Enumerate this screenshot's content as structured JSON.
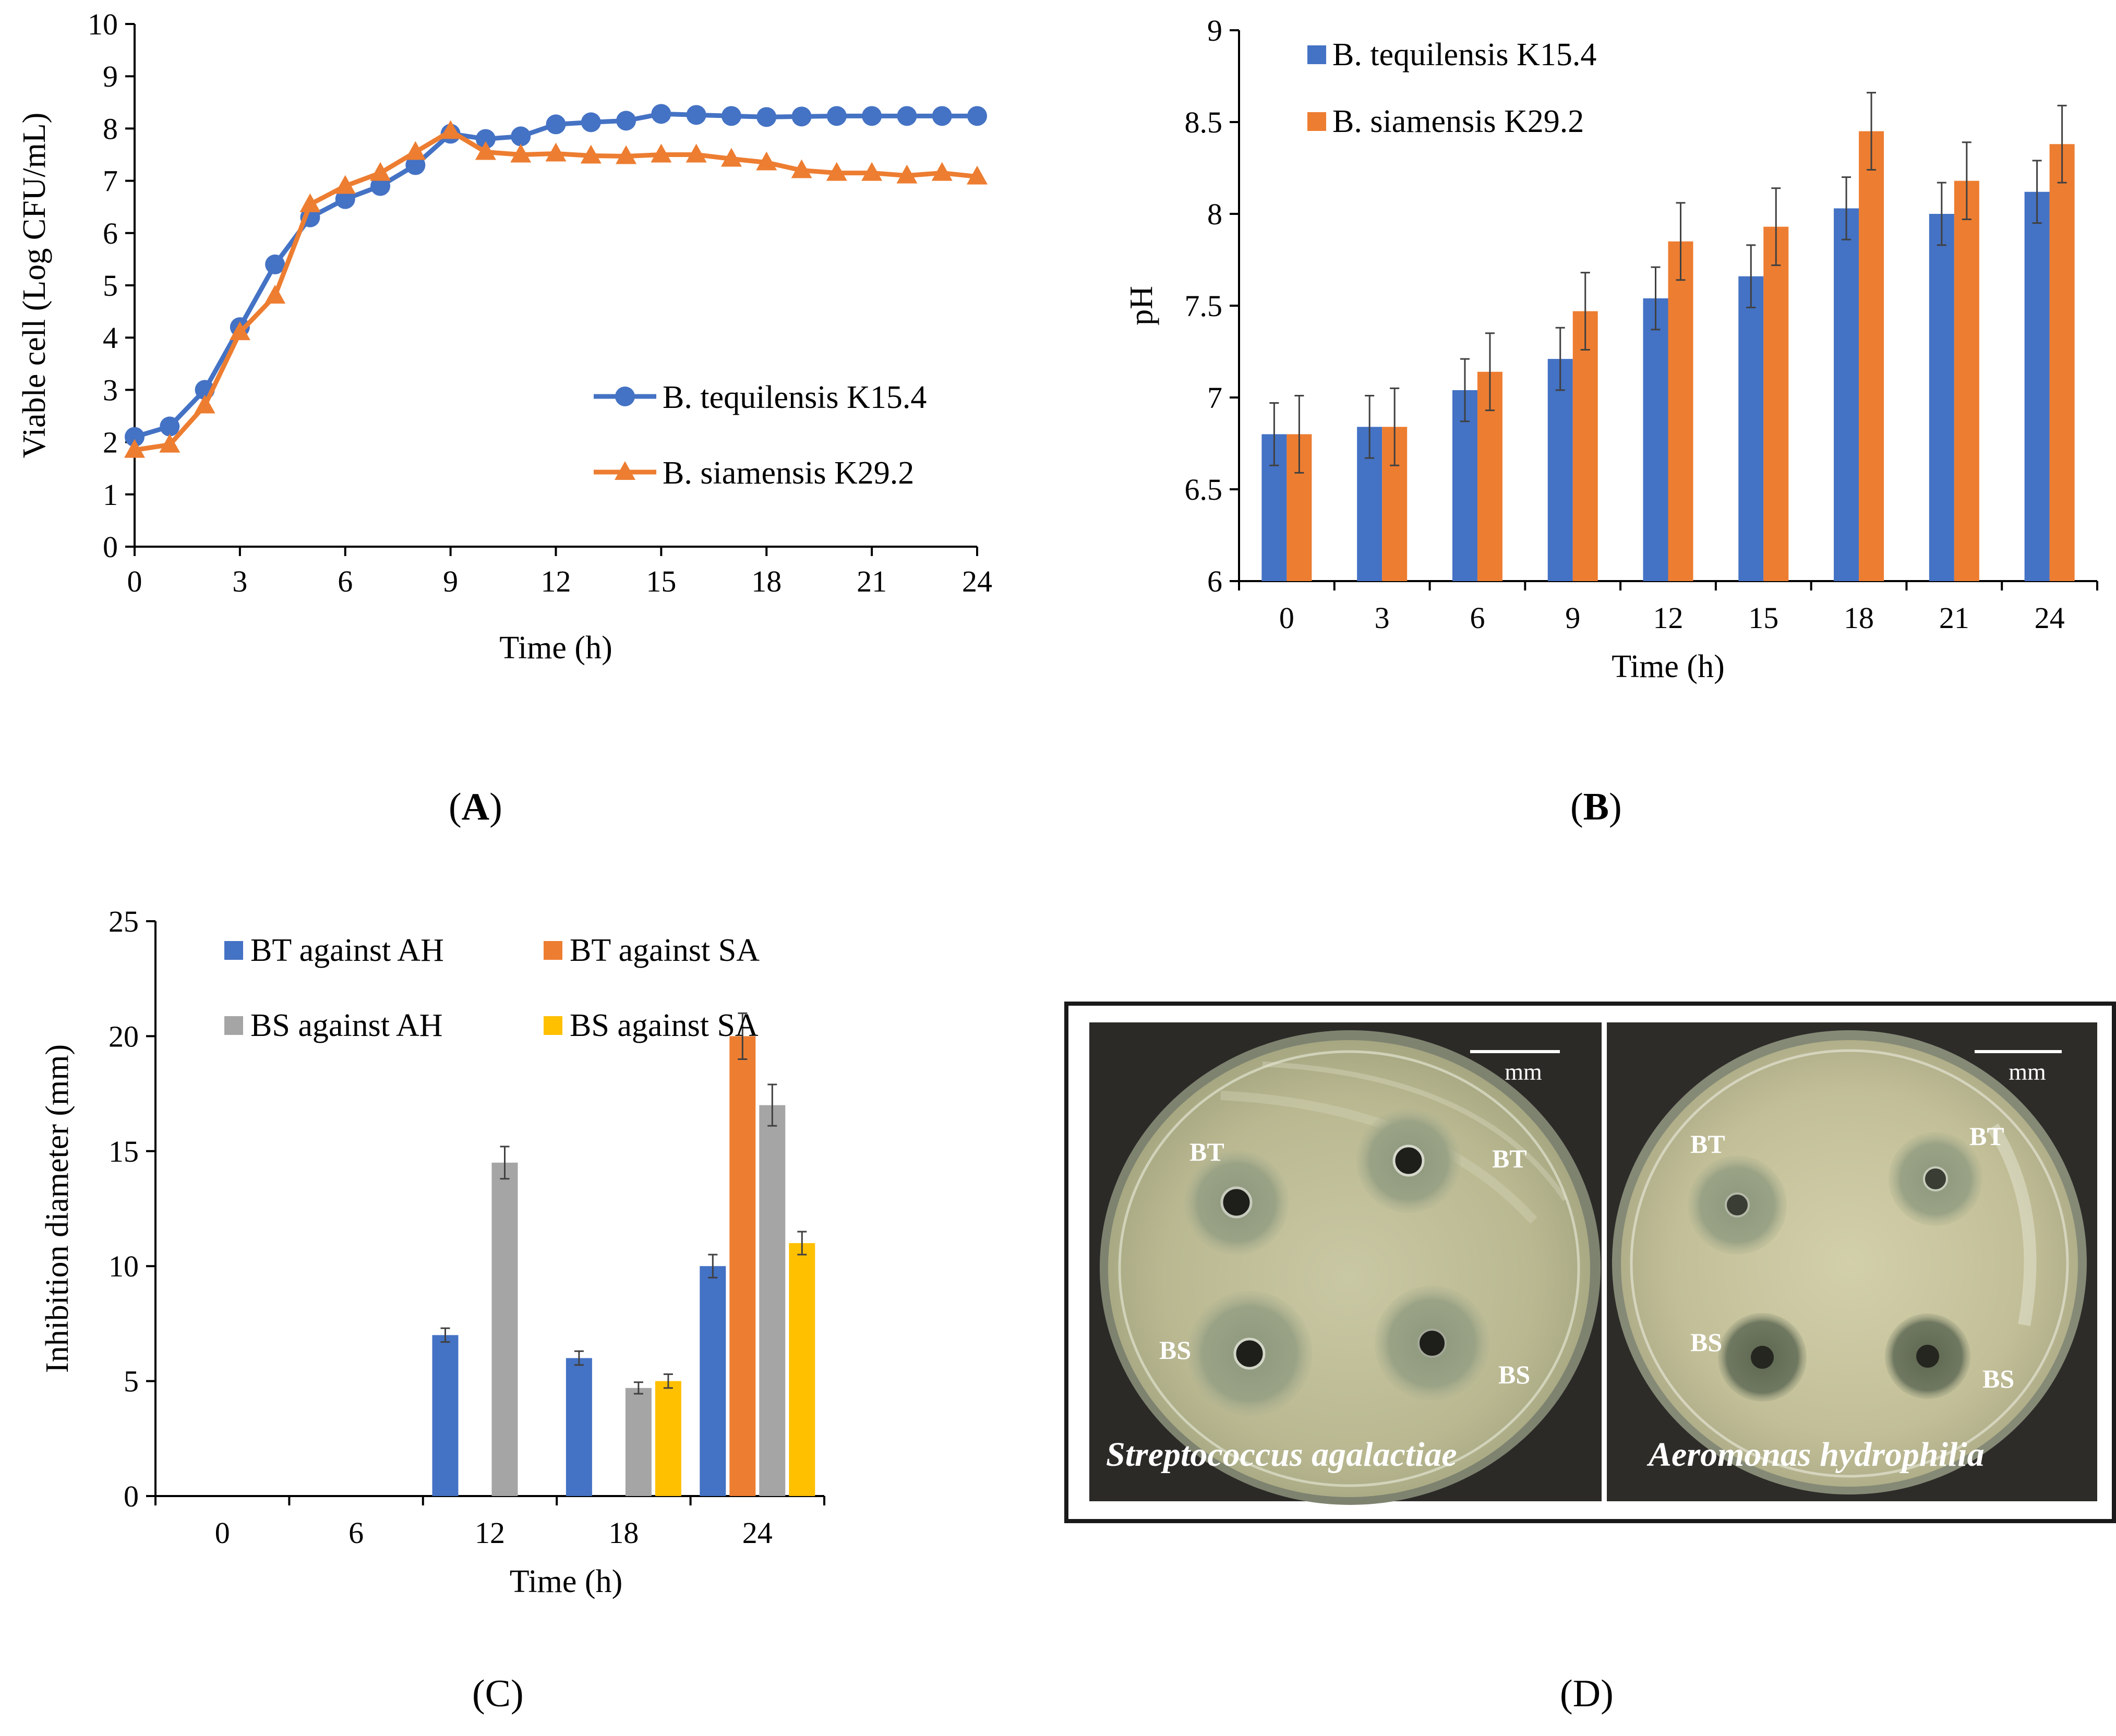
{
  "panels": {
    "A": "A",
    "B": "B",
    "C": "C",
    "D": "D"
  },
  "chart_data": [
    {
      "id": "A",
      "type": "line",
      "title": "",
      "xlabel": "Time (h)",
      "ylabel": "Viable cell (Log CFU/mL)",
      "xlim": [
        0,
        24
      ],
      "ylim": [
        0,
        10
      ],
      "xticks": [
        0,
        3,
        6,
        9,
        12,
        15,
        18,
        21,
        24
      ],
      "yticks": [
        0,
        1,
        2,
        3,
        4,
        5,
        6,
        7,
        8,
        9,
        10
      ],
      "grid": false,
      "legend": "center-right",
      "x": [
        0,
        1,
        2,
        3,
        4,
        5,
        6,
        7,
        8,
        9,
        10,
        11,
        12,
        13,
        14,
        15,
        16,
        17,
        18,
        19,
        20,
        21,
        22,
        23,
        24
      ],
      "series": [
        {
          "name": "B. tequilensis K15.4",
          "color": "#4472C4",
          "marker": "circle",
          "values": [
            2.1,
            2.3,
            3.0,
            4.2,
            5.4,
            6.3,
            6.65,
            6.9,
            7.3,
            7.9,
            7.8,
            7.85,
            8.08,
            8.12,
            8.15,
            8.28,
            8.26,
            8.24,
            8.22,
            8.23,
            8.24,
            8.24,
            8.24,
            8.24,
            8.24
          ]
        },
        {
          "name": "B. siamensis K29.2",
          "color": "#ED7D31",
          "marker": "triangle",
          "values": [
            1.85,
            1.95,
            2.7,
            4.1,
            4.8,
            6.55,
            6.9,
            7.15,
            7.55,
            7.95,
            7.55,
            7.5,
            7.52,
            7.48,
            7.47,
            7.5,
            7.5,
            7.42,
            7.35,
            7.2,
            7.15,
            7.15,
            7.1,
            7.15,
            7.08
          ]
        }
      ]
    },
    {
      "id": "B",
      "type": "bar",
      "title": "",
      "xlabel": "Time (h)",
      "ylabel": "pH",
      "ylim": [
        6,
        9
      ],
      "yticks": [
        6,
        6.5,
        7,
        7.5,
        8,
        8.5,
        9
      ],
      "grid": false,
      "legend": "top-left",
      "categories": [
        "0",
        "3",
        "6",
        "9",
        "12",
        "15",
        "18",
        "21",
        "24"
      ],
      "series": [
        {
          "name": "B. tequilensis K15.4",
          "color": "#4472C4",
          "values": [
            6.8,
            6.84,
            7.04,
            7.21,
            7.54,
            7.66,
            8.03,
            8.0,
            8.12
          ],
          "errors": [
            0.17,
            0.17,
            0.17,
            0.17,
            0.17,
            0.17,
            0.17,
            0.17,
            0.17
          ]
        },
        {
          "name": "B. siamensis K29.2",
          "color": "#ED7D31",
          "values": [
            6.8,
            6.84,
            7.14,
            7.47,
            7.85,
            7.93,
            8.45,
            8.18,
            8.38
          ],
          "errors": [
            0.21,
            0.21,
            0.21,
            0.21,
            0.21,
            0.21,
            0.21,
            0.21,
            0.21
          ]
        }
      ]
    },
    {
      "id": "C",
      "type": "bar",
      "title": "",
      "xlabel": "Time (h)",
      "ylabel": "Inhibition diameter (mm)",
      "ylim": [
        0,
        25
      ],
      "yticks": [
        0,
        5,
        10,
        15,
        20,
        25
      ],
      "grid": false,
      "legend": "top",
      "categories": [
        "0",
        "6",
        "12",
        "18",
        "24"
      ],
      "series": [
        {
          "name": "BT against AH",
          "color": "#4472C4",
          "values": [
            0,
            0,
            7,
            6,
            10
          ],
          "errors": [
            0,
            0,
            0.3,
            0.3,
            0.5
          ]
        },
        {
          "name": "BT against SA",
          "color": "#ED7D31",
          "values": [
            0,
            0,
            0,
            0,
            20
          ],
          "errors": [
            0,
            0,
            0,
            0,
            1.0
          ]
        },
        {
          "name": "BS against AH",
          "color": "#A5A5A5",
          "values": [
            0,
            0,
            14.5,
            4.7,
            17
          ],
          "errors": [
            0,
            0,
            0.7,
            0.25,
            0.9
          ]
        },
        {
          "name": "BS against SA",
          "color": "#FFC000",
          "values": [
            0,
            0,
            0,
            5,
            11
          ],
          "errors": [
            0,
            0,
            0,
            0.3,
            0.5
          ]
        }
      ]
    }
  ],
  "plates": {
    "left": {
      "species": "Streptococcus agalactiae",
      "scale": "mm",
      "label_bt_left": "BT",
      "label_bt_right": "BT",
      "label_bs_left": "BS",
      "label_bs_right": "BS"
    },
    "right": {
      "species": "Aeromonas hydrophilia",
      "scale": "mm",
      "label_bt_left": "BT",
      "label_bt_right": "BT",
      "label_bs_left": "BS",
      "label_bs_right": "BS"
    }
  }
}
